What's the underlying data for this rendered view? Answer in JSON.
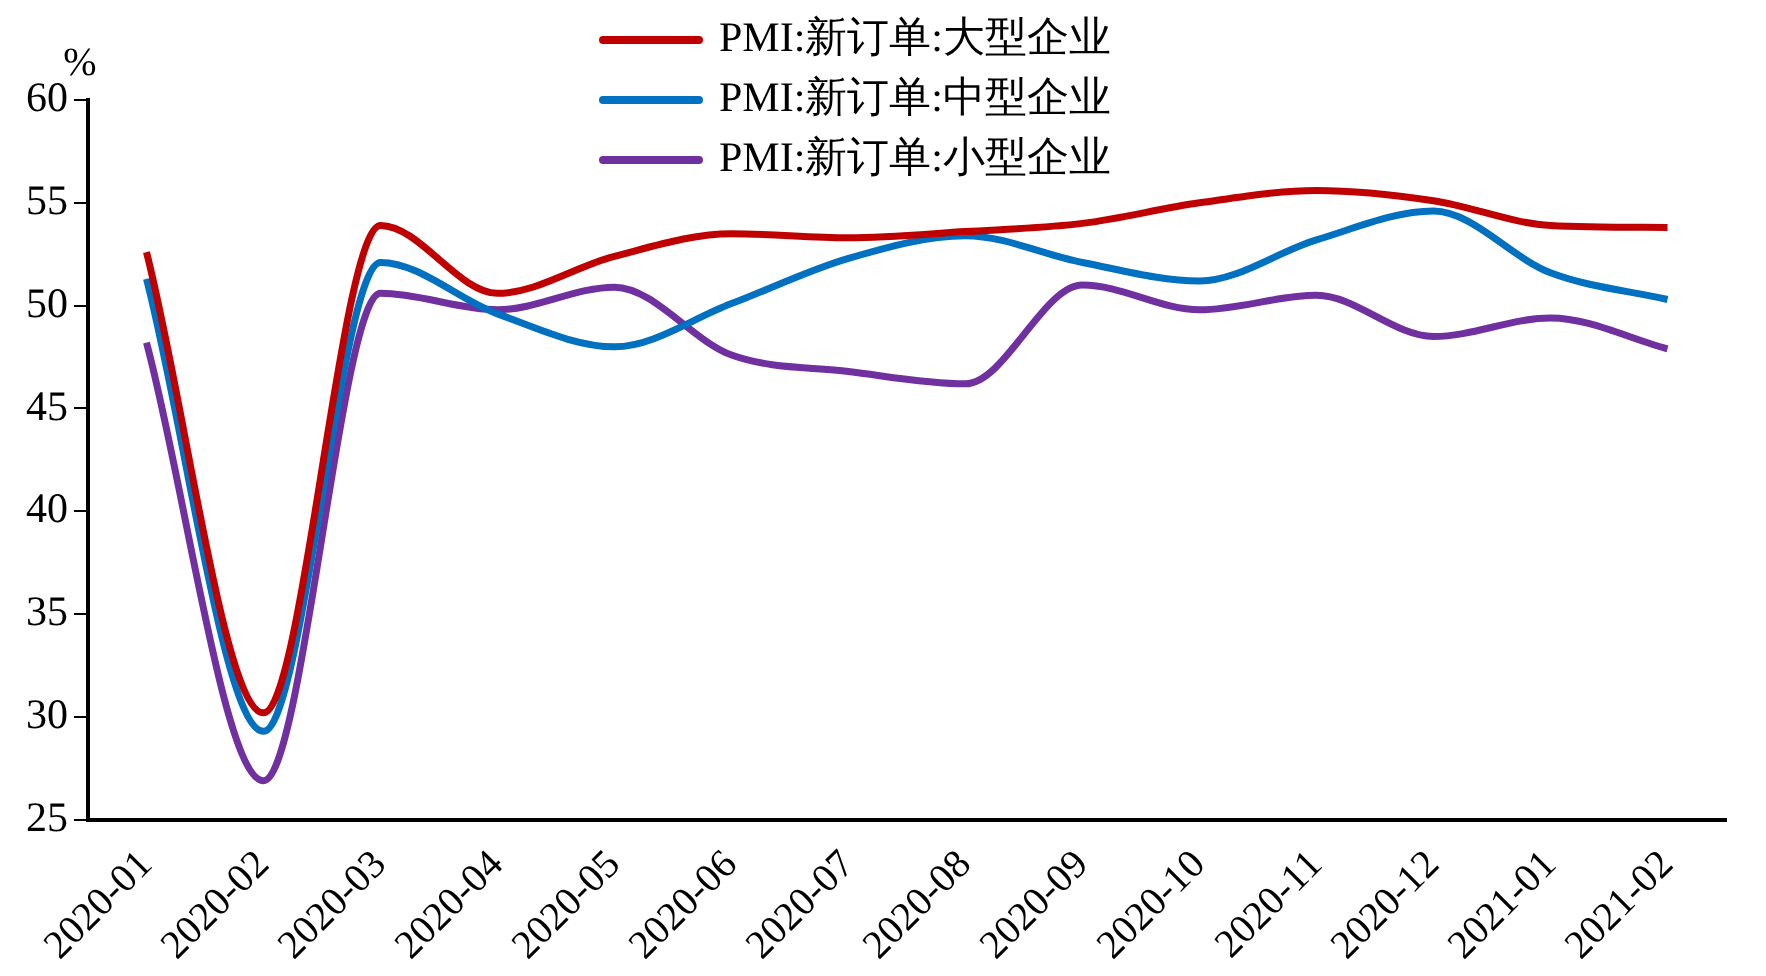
{
  "chart_data": {
    "type": "line",
    "ylabel": "%",
    "categories": [
      "2020-01",
      "2020-02",
      "2020-03",
      "2020-04",
      "2020-05",
      "2020-06",
      "2020-07",
      "2020-08",
      "2020-09",
      "2020-10",
      "2020-11",
      "2020-12",
      "2021-01",
      "2021-02"
    ],
    "series": [
      {
        "name": "PMI:新订单:大型企业",
        "color": "#c00000",
        "values": [
          52.6,
          30.2,
          53.9,
          50.6,
          52.4,
          53.5,
          53.3,
          53.6,
          54.0,
          55.0,
          55.6,
          55.1,
          53.9,
          53.8
        ]
      },
      {
        "name": "PMI:新订单:中型企业",
        "color": "#0070c0",
        "values": [
          51.3,
          29.3,
          52.1,
          49.6,
          48.0,
          50.1,
          52.3,
          53.4,
          52.1,
          51.2,
          53.2,
          54.6,
          51.6,
          50.3
        ]
      },
      {
        "name": "PMI:新订单:小型企业",
        "color": "#7030a0",
        "values": [
          48.2,
          26.9,
          50.6,
          49.8,
          50.9,
          47.6,
          46.8,
          46.2,
          51.0,
          49.8,
          50.5,
          48.5,
          49.4,
          47.9
        ]
      }
    ],
    "ylim": [
      25,
      60
    ],
    "yticks": [
      25,
      30,
      35,
      40,
      45,
      50,
      55,
      60
    ],
    "grid": false,
    "legend": "top",
    "marker": "none",
    "line_style": "solid"
  }
}
